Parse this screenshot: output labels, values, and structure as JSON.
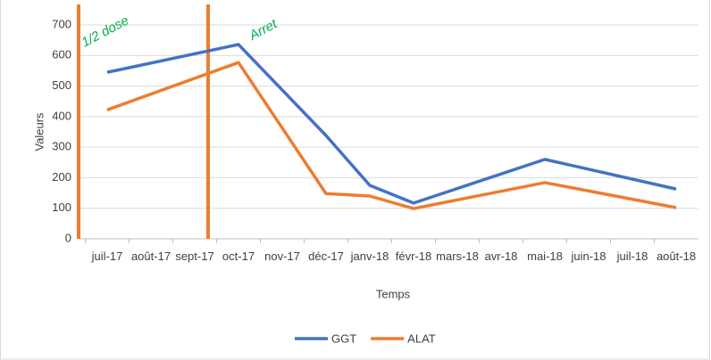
{
  "chart_data": {
    "type": "line",
    "x_label": "Temps",
    "y_label": "Valeurs",
    "categories": [
      "juil-17",
      "août-17",
      "sept-17",
      "oct-17",
      "nov-17",
      "déc-17",
      "janv-18",
      "févr-18",
      "mars-18",
      "avr-18",
      "mai-18",
      "juin-18",
      "juil-18",
      "août-18"
    ],
    "series": [
      {
        "name": "GGT",
        "color": "#4472c4",
        "values": [
          545,
          null,
          null,
          636,
          null,
          338,
          175,
          117,
          null,
          null,
          260,
          null,
          null,
          163
        ]
      },
      {
        "name": "ALAT",
        "color": "#ed7d31",
        "values": [
          422,
          null,
          null,
          577,
          null,
          148,
          140,
          99,
          null,
          null,
          184,
          null,
          null,
          102
        ]
      }
    ],
    "span_gaps": true,
    "ylim": [
      0,
      700
    ],
    "yticks": [
      0,
      100,
      200,
      300,
      400,
      500,
      600,
      700
    ],
    "grid": true,
    "legend": "bottom",
    "annotations": [
      "1/2 dose",
      "Arret"
    ]
  }
}
